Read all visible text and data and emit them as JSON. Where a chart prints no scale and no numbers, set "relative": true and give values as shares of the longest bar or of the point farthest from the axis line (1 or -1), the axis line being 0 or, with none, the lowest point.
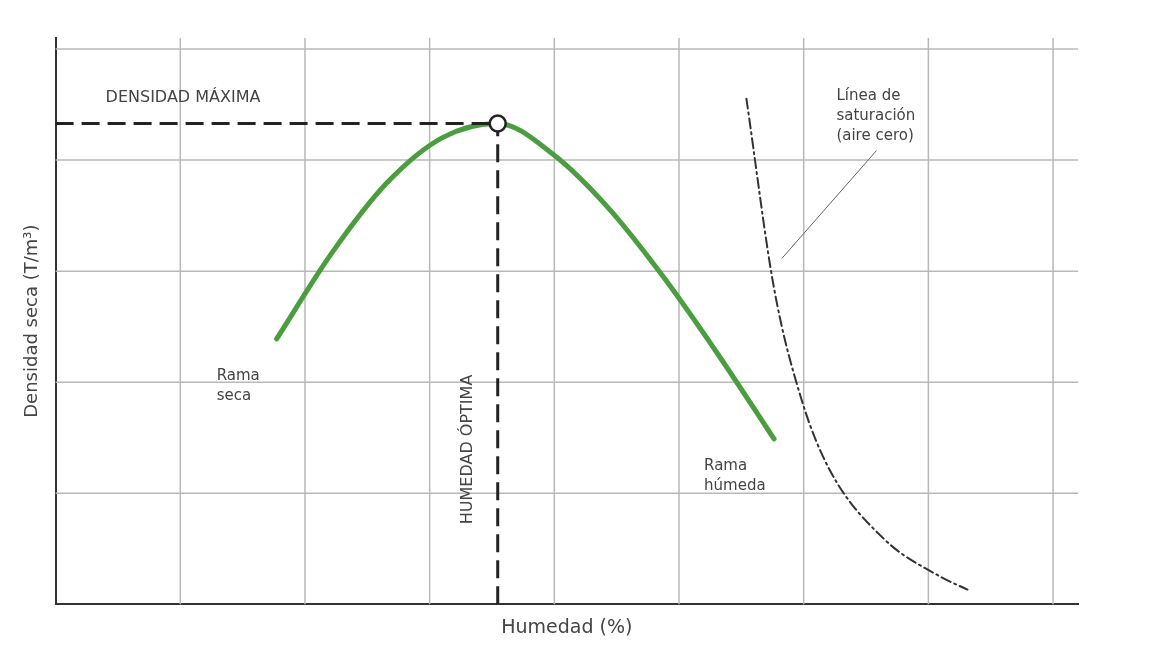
{
  "chart_data": {
    "type": "line",
    "relative": true,
    "xlabel": "Humedad (%)",
    "ylabel": "Densidad seca (T/m³)",
    "grid": true,
    "legend": false,
    "categories": [
      null,
      null,
      null,
      null,
      null,
      null,
      null,
      null,
      null,
      null,
      null,
      null,
      null,
      null,
      null,
      null,
      null,
      null,
      null,
      null,
      null,
      null,
      null,
      null,
      null,
      null,
      null,
      null,
      null,
      null,
      null,
      null,
      null,
      null,
      null,
      null,
      null,
      null
    ],
    "series": [
      {
        "color": "#4a9e3f",
        "line_style": "solid",
        "values": [
          null,
          null,
          null,
          null,
          null,
          null,
          null,
          null,
          0.525,
          null,
          0.695,
          null,
          0.834,
          null,
          0.923,
          null,
          0.951,
          null,
          0.89,
          null,
          0.784,
          null,
          0.647,
          null,
          0.492,
          null,
          0.327,
          null,
          null,
          null,
          null,
          null,
          null,
          null,
          null,
          null,
          null,
          null
        ]
      },
      {
        "name": "Línea de saturación (aire cero)",
        "color": "#333333",
        "line_style": "dashed",
        "values": [
          null,
          null,
          null,
          null,
          null,
          null,
          null,
          null,
          null,
          null,
          null,
          null,
          null,
          null,
          null,
          null,
          null,
          null,
          null,
          null,
          null,
          null,
          null,
          null,
          null,
          1,
          0.625,
          0.404,
          0.267,
          null,
          0.128,
          null,
          0.055,
          0.029,
          null,
          null,
          null,
          null
        ]
      }
    ],
    "ref_lines": [
      {
        "axis": "y",
        "value": 0.951,
        "label": "DENSIDAD MÁXIMA",
        "color": "#222222",
        "line_style": "dashed"
      }
    ],
    "annotations": [
      "Rama seca",
      "Rama húmeda",
      "HUMEDAD ÓPTIMA"
    ]
  }
}
